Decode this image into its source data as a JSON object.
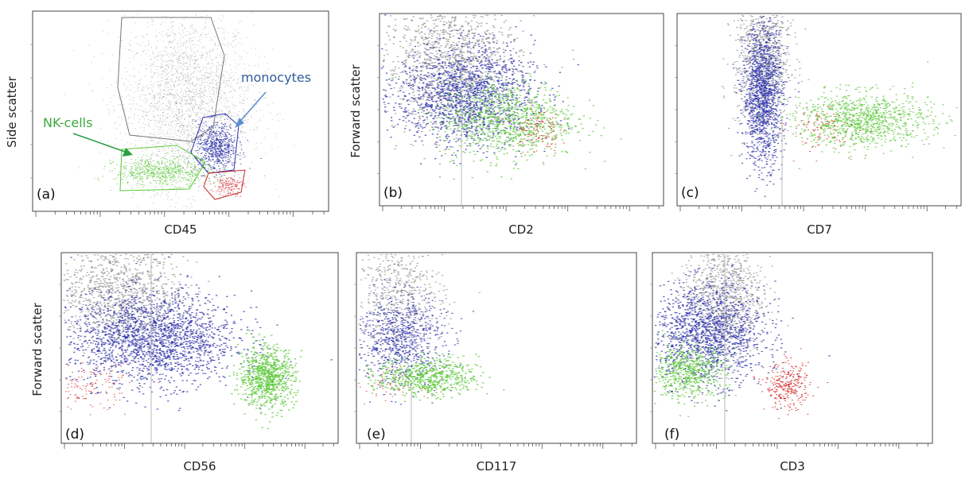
{
  "chart_data": [
    {
      "type": "scatter",
      "panel": "(a)",
      "xlabel": "CD45",
      "ylabel": "Side scatter",
      "xscale": "log",
      "grid": false,
      "colors": {
        "neutrophils": "#7a7a7a",
        "monocytes": "#2b2fa8",
        "nk": "#5cc83a",
        "red": "#d42020"
      },
      "annotations": [
        {
          "text": "monocytes",
          "color": "#2f5d9a"
        },
        {
          "text": "NK-cells",
          "color": "#3caa3c"
        }
      ],
      "gates": [
        "grey",
        "monocytes",
        "NK-cells",
        "red"
      ],
      "populations": [
        {
          "color": "grey",
          "x": 0.52,
          "y": 0.55,
          "spread": "large"
        },
        {
          "color": "monocytes",
          "x": 0.62,
          "y": 0.32,
          "spread": "small"
        },
        {
          "color": "nk",
          "x": 0.44,
          "y": 0.2,
          "spread": "medium"
        },
        {
          "color": "red",
          "x": 0.66,
          "y": 0.13,
          "spread": "small"
        }
      ]
    },
    {
      "type": "scatter",
      "panel": "(b)",
      "xlabel": "CD2",
      "ylabel": "Forward scatter",
      "xscale": "log",
      "populations": [
        {
          "color": "grey",
          "x": 0.25,
          "y": 0.75
        },
        {
          "color": "monocytes",
          "x": 0.3,
          "y": 0.58
        },
        {
          "color": "nk",
          "x": 0.45,
          "y": 0.45
        },
        {
          "color": "red",
          "x": 0.55,
          "y": 0.4
        }
      ]
    },
    {
      "type": "scatter",
      "panel": "(c)",
      "xlabel": "CD7",
      "ylabel": "",
      "xscale": "log",
      "populations": [
        {
          "color": "grey",
          "x": 0.3,
          "y": 0.8
        },
        {
          "color": "monocytes",
          "x": 0.3,
          "y": 0.58
        },
        {
          "color": "nk",
          "x": 0.65,
          "y": 0.45
        },
        {
          "color": "red",
          "x": 0.5,
          "y": 0.4
        }
      ]
    },
    {
      "type": "scatter",
      "panel": "(d)",
      "xlabel": "CD56",
      "ylabel": "Forward scatter",
      "xscale": "log",
      "populations": [
        {
          "color": "grey",
          "x": 0.2,
          "y": 0.8
        },
        {
          "color": "monocytes",
          "x": 0.33,
          "y": 0.55
        },
        {
          "color": "nk",
          "x": 0.74,
          "y": 0.35
        },
        {
          "color": "red",
          "x": 0.1,
          "y": 0.3
        }
      ]
    },
    {
      "type": "scatter",
      "panel": "(e)",
      "xlabel": "CD117",
      "ylabel": "",
      "xscale": "log",
      "populations": [
        {
          "color": "grey",
          "x": 0.15,
          "y": 0.78
        },
        {
          "color": "monocytes",
          "x": 0.15,
          "y": 0.55
        },
        {
          "color": "nk",
          "x": 0.25,
          "y": 0.35
        },
        {
          "color": "red",
          "x": 0.1,
          "y": 0.3
        }
      ]
    },
    {
      "type": "scatter",
      "panel": "(f)",
      "xlabel": "CD3",
      "ylabel": "",
      "xscale": "log",
      "populations": [
        {
          "color": "grey",
          "x": 0.25,
          "y": 0.8
        },
        {
          "color": "monocytes",
          "x": 0.2,
          "y": 0.58
        },
        {
          "color": "nk",
          "x": 0.12,
          "y": 0.38
        },
        {
          "color": "red",
          "x": 0.48,
          "y": 0.3
        }
      ]
    }
  ]
}
